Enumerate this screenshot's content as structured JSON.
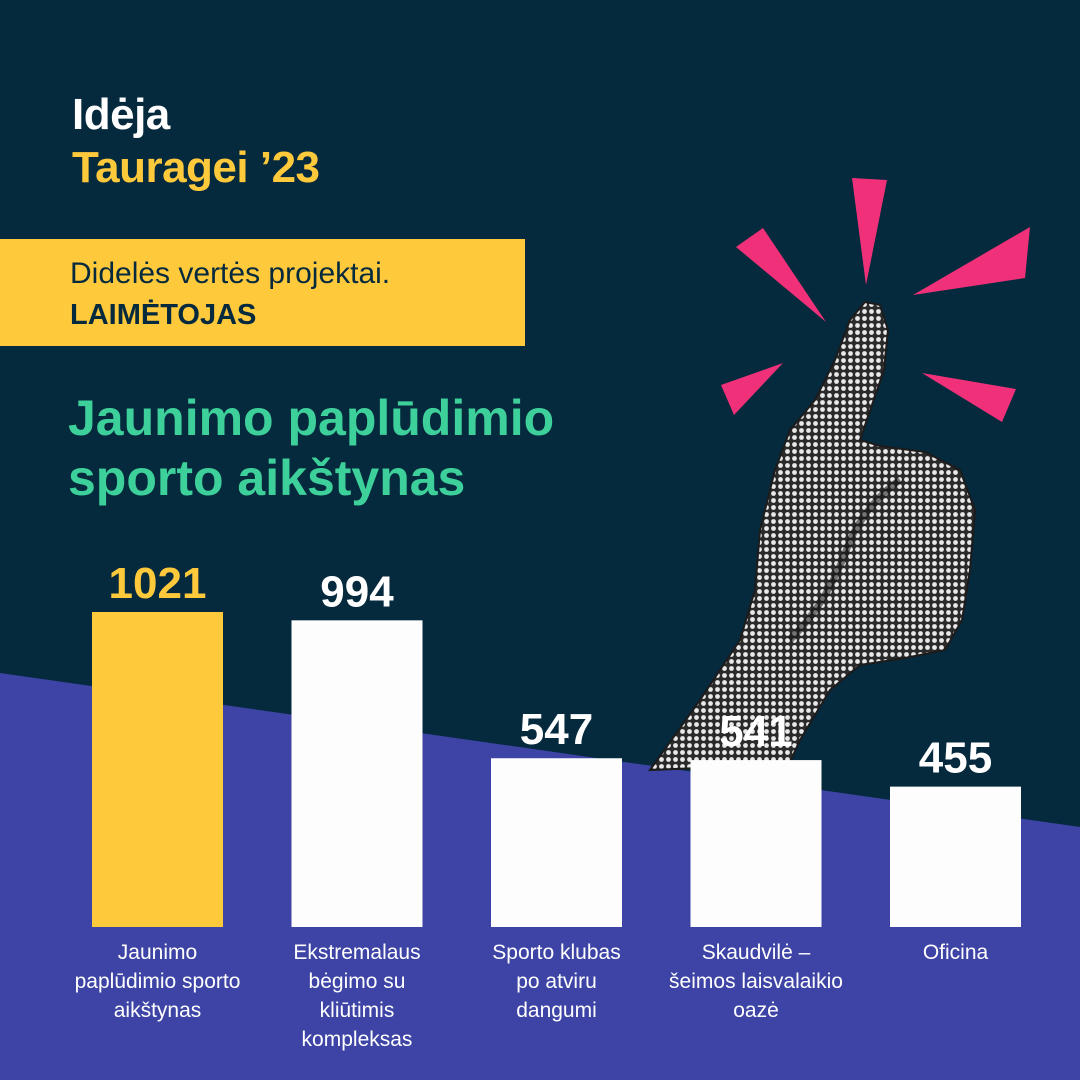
{
  "header": {
    "line1": "Idėja",
    "line2": "Tauragei ’23"
  },
  "banner": {
    "subtitle": "Didelės vertės projektai.",
    "winner": "LAIMĖTOJAS"
  },
  "project_title": "Jaunimo paplūdimio sporto aikštynas",
  "colors": {
    "background": "#05293d",
    "lower_band": "#3d44a5",
    "accent_yellow": "#ffc93c",
    "accent_green": "#3ed09a",
    "accent_pink": "#f0317a",
    "bar_default": "#fdfdfd"
  },
  "decoration": {
    "illustration": "thumbs-up-halftone-hand",
    "rays": "pink-burst-rays"
  },
  "chart_data": {
    "type": "bar",
    "categories": [
      "Jaunimo paplūdimio sporto aikštynas",
      "Ekstremalaus bėgimo su kliūtimis kompleksas",
      "Sporto klubas po atviru dangumi",
      "Skaudvilė – šeimos laisvalaikio oazė",
      "Oficina"
    ],
    "category_lines": [
      [
        "Jaunimo",
        "paplūdimio sporto",
        "aikštynas"
      ],
      [
        "Ekstremalaus",
        "bėgimo su",
        "kliūtimis",
        "kompleksas"
      ],
      [
        "Sporto klubas",
        "po atviru",
        "dangumi"
      ],
      [
        "Skaudvilė –",
        "šeimos laisvalaikio",
        "oazė"
      ],
      [
        "Oficina"
      ]
    ],
    "values": [
      1021,
      994,
      547,
      541,
      455
    ],
    "highlight_index": 0,
    "grid": false,
    "legend": "none"
  }
}
